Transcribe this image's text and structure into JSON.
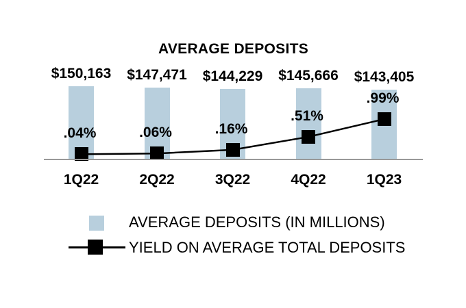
{
  "title": "AVERAGE DEPOSITS",
  "colors": {
    "bar": "#b8cfdd",
    "line": "#000000",
    "marker": "#000000",
    "axis": "#999999",
    "text": "#000000"
  },
  "chart_data": {
    "type": "bar+line combo",
    "title": "AVERAGE DEPOSITS",
    "categories": [
      "1Q22",
      "2Q22",
      "3Q22",
      "4Q22",
      "1Q23"
    ],
    "series": [
      {
        "name": "AVERAGE DEPOSITS (IN MILLIONS)",
        "type": "bar",
        "values": [
          150163,
          147471,
          144229,
          145666,
          143405
        ],
        "labels": [
          "$150,163",
          "$147,471",
          "$144,229",
          "$145,666",
          "$143,405"
        ]
      },
      {
        "name": "YIELD ON AVERAGE TOTAL DEPOSITS",
        "type": "line",
        "values": [
          0.04,
          0.06,
          0.16,
          0.51,
          0.99
        ],
        "labels": [
          ".04%",
          ".06%",
          ".16%",
          ".51%",
          ".99%"
        ]
      }
    ],
    "ylim_bar": [
      0,
      150163
    ],
    "ylim_yield_percent": [
      0,
      1.0
    ],
    "grid": false,
    "x_axis_line": true,
    "legend_position": "bottom"
  },
  "legend": {
    "items": [
      {
        "swatch": "bar-swatch",
        "label": "AVERAGE DEPOSITS (IN MILLIONS)"
      },
      {
        "swatch": "line-marker-swatch",
        "label": "YIELD ON AVERAGE TOTAL DEPOSITS"
      }
    ]
  }
}
